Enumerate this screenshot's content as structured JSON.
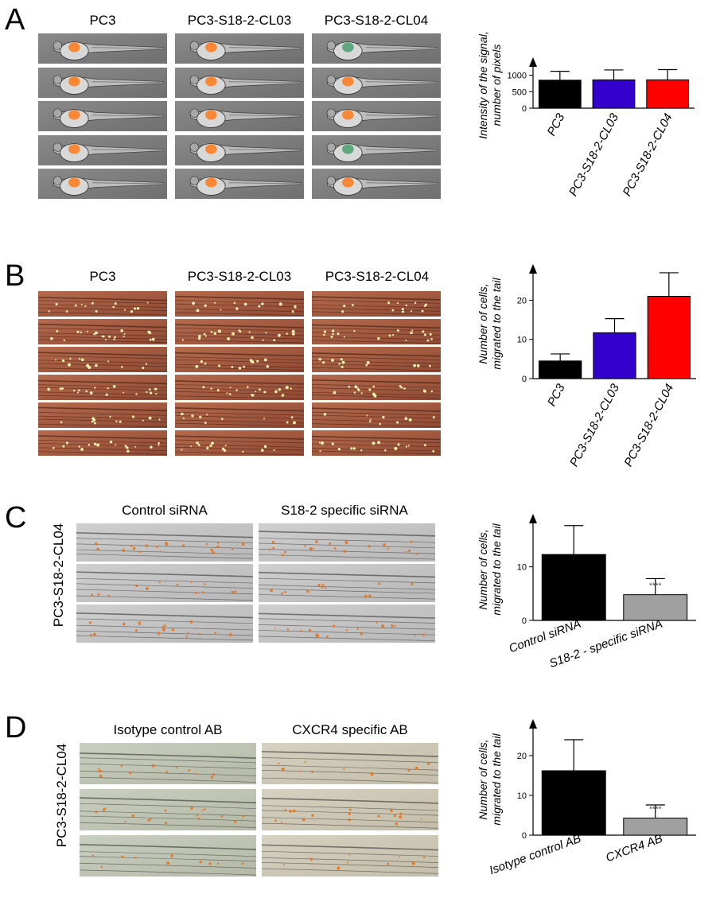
{
  "panels": [
    {
      "letter": "A",
      "photo_type": "embryo",
      "columns": [
        "PC3",
        "PC3-S18-2-CL03",
        "PC3-S18-2-CL04"
      ],
      "rows": 5,
      "side_label": "",
      "chart": {
        "type": "bar",
        "categories": [
          "PC3",
          "PC3-S18-2-CL03",
          "PC3-S18-2-CL04"
        ],
        "values": [
          850,
          860,
          860
        ],
        "errors": [
          270,
          300,
          310
        ],
        "colors": [
          "#000000",
          "#3300cc",
          "#ff0000"
        ],
        "ylabel": [
          "Intensity of the signal,",
          "number of pixels"
        ],
        "ylim": [
          0,
          1400
        ],
        "yticks": [
          0,
          500,
          1000
        ],
        "annotations": [
          "",
          "",
          ""
        ]
      }
    },
    {
      "letter": "B",
      "photo_type": "tail-orange",
      "columns": [
        "PC3",
        "PC3-S18-2-CL03",
        "PC3-S18-2-CL04"
      ],
      "rows": 6,
      "side_label": "",
      "chart": {
        "type": "bar",
        "categories": [
          "PC3",
          "PC3-S18-2-CL03",
          "PC3-S18-2-CL04"
        ],
        "values": [
          4.5,
          11.7,
          21
        ],
        "errors": [
          1.8,
          3.6,
          6
        ],
        "colors": [
          "#000000",
          "#3300cc",
          "#ff0000"
        ],
        "ylabel": [
          "Number of cells,",
          "migrated to the tail"
        ],
        "ylim": [
          0,
          28
        ],
        "yticks": [
          0,
          10,
          20
        ],
        "annotations": [
          "",
          "",
          ""
        ]
      }
    },
    {
      "letter": "C",
      "photo_type": "tail-grey",
      "columns": [
        "Control siRNA",
        "S18-2 specific siRNA"
      ],
      "rows": 3,
      "side_label": "PC3-S18-2-CL04",
      "chart": {
        "type": "bar",
        "categories": [
          "Control siRNA",
          "S18-2 - specific siRNA"
        ],
        "values": [
          12.3,
          4.8
        ],
        "errors": [
          5.4,
          3
        ],
        "colors": [
          "#000000",
          "#a0a0a0"
        ],
        "ylabel": [
          "Number of cells,",
          "migrated to the tail"
        ],
        "ylim": [
          0,
          19
        ],
        "yticks": [
          0,
          10
        ],
        "annotations": [
          "",
          "****"
        ]
      }
    },
    {
      "letter": "D",
      "photo_type": "tail-green",
      "columns": [
        "Isotype control AB",
        "CXCR4 specific AB"
      ],
      "rows": 3,
      "side_label": "PC3-S18-2-CL04",
      "chart": {
        "type": "bar",
        "categories": [
          "Isotype control AB",
          "CXCR4 AB"
        ],
        "values": [
          16.2,
          4.3
        ],
        "errors": [
          7.8,
          3.3
        ],
        "colors": [
          "#000000",
          "#a0a0a0"
        ],
        "ylabel": [
          "Number of cells,",
          "migrated to the tail"
        ],
        "ylim": [
          0,
          28
        ],
        "yticks": [
          0,
          10,
          20
        ],
        "annotations": [
          "",
          "****"
        ]
      }
    }
  ],
  "chart_data": [
    {
      "type": "bar",
      "categories": [
        "PC3",
        "PC3-S18-2-CL03",
        "PC3-S18-2-CL04"
      ],
      "values": [
        850,
        860,
        860
      ],
      "errors": [
        270,
        300,
        310
      ],
      "ylabel": "Intensity of the signal, number of pixels",
      "ylim": [
        0,
        1400
      ]
    },
    {
      "type": "bar",
      "categories": [
        "PC3",
        "PC3-S18-2-CL03",
        "PC3-S18-2-CL04"
      ],
      "values": [
        4.5,
        11.7,
        21
      ],
      "errors": [
        1.8,
        3.6,
        6
      ],
      "ylabel": "Number of cells, migrated to the tail",
      "ylim": [
        0,
        28
      ]
    },
    {
      "type": "bar",
      "categories": [
        "Control siRNA",
        "S18-2 - specific siRNA"
      ],
      "values": [
        12.3,
        4.8
      ],
      "errors": [
        5.4,
        3
      ],
      "ylabel": "Number of cells, migrated to the tail",
      "ylim": [
        0,
        19
      ]
    },
    {
      "type": "bar",
      "categories": [
        "Isotype control AB",
        "CXCR4 AB"
      ],
      "values": [
        16.2,
        4.3
      ],
      "errors": [
        7.8,
        3.3
      ],
      "ylabel": "Number of cells, migrated to the tail",
      "ylim": [
        0,
        28
      ]
    }
  ]
}
